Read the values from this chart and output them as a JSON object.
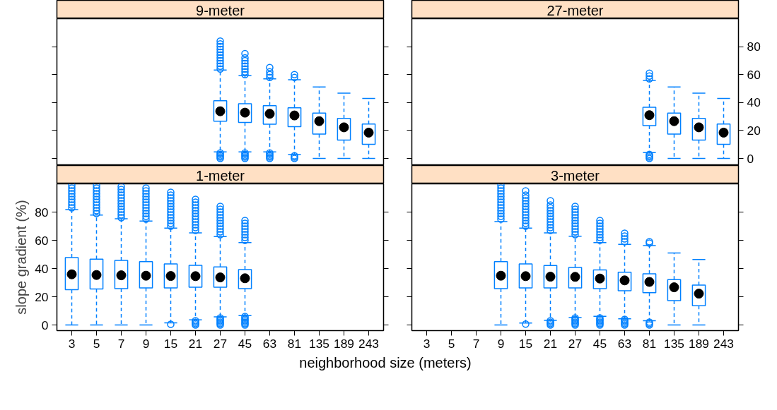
{
  "chart_data": [
    {
      "type": "box",
      "title": "9-meter",
      "categories": [
        "3",
        "5",
        "7",
        "9",
        "15",
        "21",
        "27",
        "45",
        "63",
        "81",
        "135",
        "189",
        "243"
      ],
      "ylim": [
        -5,
        100
      ],
      "yticks": [
        0,
        20,
        40,
        60,
        80
      ],
      "tick_labels": false,
      "grid": false,
      "series": [
        {
          "color": "#0080ff",
          "boxes": [
            null,
            null,
            null,
            null,
            null,
            null,
            {
              "low": 4.7,
              "q1": 26.7,
              "median": 33.8,
              "q3": 41.3,
              "high": 63.3,
              "outliers": [
                0,
                1,
                2,
                3,
                4,
                64,
                66,
                68,
                70,
                72,
                74,
                76,
                78,
                80,
                82,
                84
              ]
            },
            {
              "low": 4.7,
              "q1": 25.8,
              "median": 32.8,
              "q3": 39.2,
              "high": 59.2,
              "outliers": [
                0,
                1,
                2,
                3,
                4,
                60,
                62,
                64,
                66,
                68,
                70,
                72,
                75
              ]
            },
            {
              "low": 4.7,
              "q1": 24.5,
              "median": 32,
              "q3": 37.8,
              "high": 57,
              "outliers": [
                0,
                1,
                2,
                3,
                4,
                58,
                60,
                62,
                65
              ]
            },
            {
              "low": 2.8,
              "q1": 22.8,
              "median": 30.8,
              "q3": 36.3,
              "high": 56.3,
              "outliers": [
                0,
                1,
                2,
                58,
                60
              ]
            },
            {
              "low": 0,
              "q1": 17.5,
              "median": 26.7,
              "q3": 32.5,
              "high": 51.2
            },
            {
              "low": 0,
              "q1": 13.2,
              "median": 22.3,
              "q3": 28.7,
              "high": 46.7
            },
            {
              "low": 0,
              "q1": 10.2,
              "median": 18.5,
              "q3": 24.7,
              "high": 43
            }
          ]
        }
      ]
    },
    {
      "type": "box",
      "title": "27-meter",
      "categories": [
        "3",
        "5",
        "7",
        "9",
        "15",
        "21",
        "27",
        "45",
        "63",
        "81",
        "135",
        "189",
        "243"
      ],
      "ylim": [
        -5,
        100
      ],
      "yticks": [
        0,
        20,
        40,
        60,
        80
      ],
      "tick_labels": "y",
      "grid": false,
      "series": [
        {
          "color": "#0080ff",
          "boxes": [
            null,
            null,
            null,
            null,
            null,
            null,
            null,
            null,
            null,
            {
              "low": 4.2,
              "q1": 23.5,
              "median": 31,
              "q3": 36.7,
              "high": 55.8,
              "outliers": [
                0,
                1,
                2,
                3,
                57,
                59,
                61
              ]
            },
            {
              "low": 0,
              "q1": 17.5,
              "median": 26.7,
              "q3": 32.5,
              "high": 51.2
            },
            {
              "low": 0,
              "q1": 13.2,
              "median": 22.3,
              "q3": 28.7,
              "high": 46.7
            },
            {
              "low": 0,
              "q1": 10.2,
              "median": 18.5,
              "q3": 24.7,
              "high": 43
            }
          ]
        }
      ]
    },
    {
      "type": "box",
      "title": "1-meter",
      "xlabel": "neighborhood size (meters)",
      "ylabel": "slope gradient (%)",
      "categories": [
        "3",
        "5",
        "7",
        "9",
        "15",
        "21",
        "27",
        "45",
        "63",
        "81",
        "135",
        "189",
        "243"
      ],
      "ylim": [
        -4,
        100
      ],
      "yticks": [
        0,
        20,
        40,
        60,
        80
      ],
      "grid": false,
      "series": [
        {
          "color": "#0080ff",
          "boxes": [
            {
              "low": 0,
              "q1": 25,
              "median": 35.9,
              "q3": 47.7,
              "high": 81.8,
              "outliers": [
                83,
                85,
                87,
                89,
                91,
                93,
                95,
                97,
                99
              ]
            },
            {
              "low": 0,
              "q1": 25.5,
              "median": 35.4,
              "q3": 46.6,
              "high": 77.9,
              "outliers": [
                79,
                81,
                83,
                85,
                87,
                89,
                91,
                93,
                95,
                97,
                99
              ]
            },
            {
              "low": 0,
              "q1": 25.8,
              "median": 35.2,
              "q3": 45.8,
              "high": 75.2,
              "outliers": [
                76,
                78,
                80,
                82,
                84,
                86,
                88,
                90,
                92,
                94,
                96,
                98
              ]
            },
            {
              "low": 0,
              "q1": 26.2,
              "median": 34.9,
              "q3": 44.9,
              "high": 73.6,
              "outliers": [
                75,
                77,
                79,
                81,
                83,
                85,
                87,
                89,
                91,
                93,
                95,
                97
              ]
            },
            {
              "low": 1.5,
              "q1": 26.3,
              "median": 34.7,
              "q3": 43.3,
              "high": 68.6,
              "outliers": [
                0.5,
                70,
                72,
                74,
                76,
                78,
                80,
                82,
                84,
                86,
                88,
                90,
                92,
                94
              ]
            },
            {
              "low": 3.6,
              "q1": 26.8,
              "median": 34.6,
              "q3": 42.3,
              "high": 65.3,
              "outliers": [
                0,
                1,
                2,
                3,
                67,
                69,
                71,
                73,
                75,
                77,
                79,
                81,
                83,
                85,
                87,
                89
              ]
            },
            {
              "low": 5.8,
              "q1": 26.8,
              "median": 33.7,
              "q3": 41.1,
              "high": 62.6,
              "outliers": [
                0,
                1,
                2,
                3,
                4,
                5,
                64,
                66,
                68,
                70,
                72,
                74,
                76,
                78,
                80,
                82,
                84
              ]
            },
            {
              "low": 6.6,
              "q1": 25.8,
              "median": 33.1,
              "q3": 39.2,
              "high": 58.4,
              "outliers": [
                0,
                1,
                2,
                3,
                4,
                5,
                6,
                60,
                62,
                64,
                66,
                68,
                70,
                72,
                74
              ]
            },
            null,
            null,
            null,
            null,
            null
          ]
        }
      ]
    },
    {
      "type": "box",
      "title": "3-meter",
      "categories": [
        "3",
        "5",
        "7",
        "9",
        "15",
        "21",
        "27",
        "45",
        "63",
        "81",
        "135",
        "189",
        "243"
      ],
      "ylim": [
        -4,
        100
      ],
      "yticks": [
        0,
        20,
        40,
        60,
        80
      ],
      "tick_labels": "x",
      "grid": false,
      "series": [
        {
          "color": "#0080ff",
          "boxes": [
            null,
            null,
            null,
            {
              "low": 0,
              "q1": 25.8,
              "median": 34.9,
              "q3": 44.9,
              "high": 73.2,
              "outliers": [
                75,
                77,
                79,
                81,
                83,
                85,
                87,
                89,
                91,
                93,
                95,
                97,
                99
              ]
            },
            {
              "low": 1.4,
              "q1": 26.2,
              "median": 34.6,
              "q3": 43.3,
              "high": 68.6,
              "outliers": [
                0.6,
                70,
                72,
                74,
                76,
                78,
                80,
                82,
                84,
                86,
                88,
                90,
                92,
                95
              ]
            },
            {
              "low": 3.3,
              "q1": 26.3,
              "median": 34.2,
              "q3": 42.1,
              "high": 65.3,
              "outliers": [
                0,
                1,
                2,
                3,
                67,
                69,
                71,
                73,
                75,
                77,
                79,
                81,
                83,
                85,
                88
              ]
            },
            {
              "low": 5.3,
              "q1": 26.3,
              "median": 34.1,
              "q3": 40.8,
              "high": 62.9,
              "outliers": [
                0,
                1,
                2,
                3,
                4,
                5,
                64,
                66,
                68,
                70,
                72,
                74,
                76,
                78,
                80,
                82,
                84
              ]
            },
            {
              "low": 6.1,
              "q1": 25.8,
              "median": 32.9,
              "q3": 39,
              "high": 58.4,
              "outliers": [
                0,
                1,
                2,
                3,
                4,
                5,
                60,
                62,
                64,
                66,
                68,
                70,
                72,
                74
              ]
            },
            {
              "low": 4.4,
              "q1": 24.3,
              "median": 31.6,
              "q3": 37.4,
              "high": 57.1,
              "outliers": [
                0,
                1,
                2,
                3,
                4,
                59,
                61,
                63,
                65
              ]
            },
            {
              "low": 3,
              "q1": 22.9,
              "median": 30.5,
              "q3": 36.2,
              "high": 56.3,
              "outliers": [
                0,
                1,
                2,
                58,
                59
              ]
            },
            {
              "low": 0,
              "q1": 17.3,
              "median": 26.7,
              "q3": 32.1,
              "high": 51
            },
            {
              "low": 0,
              "q1": 13.6,
              "median": 22.2,
              "q3": 28.3,
              "high": 46.4
            },
            null
          ]
        }
      ]
    }
  ]
}
